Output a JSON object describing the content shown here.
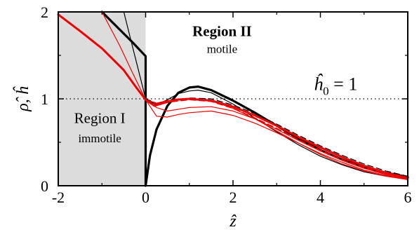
{
  "chart_data": {
    "type": "line",
    "xlabel": "ẑ",
    "ylabel": "ρ̂, ĥ",
    "xlim": [
      -2,
      6
    ],
    "ylim": [
      0,
      2
    ],
    "xticks": [
      "-2",
      "0",
      "2",
      "4",
      "6"
    ],
    "yticks": [
      "0",
      "1",
      "2"
    ],
    "grid": false,
    "regions": [
      {
        "title": "Region I",
        "subtitle": "immotile",
        "x_range": [
          -2,
          0
        ],
        "fill": "#dcdcdc"
      },
      {
        "title": "Region II",
        "subtitle": "motile",
        "x_range": [
          0,
          6
        ],
        "fill": "#ffffff"
      }
    ],
    "annotation": {
      "lhs": "ĥ",
      "subscript": "0",
      "rhs": " = 1"
    },
    "reference_line": {
      "y": 1,
      "style": "dotted"
    },
    "series": [
      {
        "color": "#000000",
        "width": 3.2,
        "dash": "",
        "x": [
          -1.0,
          -0.6,
          -0.3,
          0,
          0,
          0.1,
          0.25,
          0.5,
          0.75,
          1.0,
          1.2,
          1.5,
          2.0,
          2.5,
          3.0,
          3.5,
          4.0,
          4.5,
          5.0,
          5.5,
          6.0
        ],
        "y": [
          2.0,
          1.8,
          1.65,
          1.49,
          0,
          0.35,
          0.65,
          0.92,
          1.07,
          1.13,
          1.14,
          1.1,
          0.98,
          0.84,
          0.69,
          0.54,
          0.41,
          0.3,
          0.21,
          0.15,
          0.1
        ]
      },
      {
        "color": "#000000",
        "width": 1.2,
        "dash": "",
        "x": [
          -0.5,
          -0.3,
          -0.1,
          0,
          0.25,
          0.5,
          0.75,
          1.0,
          1.2,
          1.5,
          2.0,
          2.5,
          3.0,
          3.5,
          4.0,
          4.5,
          5.0,
          5.5,
          6.0
        ],
        "y": [
          2.0,
          1.6,
          1.2,
          1.0,
          0.93,
          0.99,
          1.06,
          1.09,
          1.1,
          1.07,
          0.94,
          0.78,
          0.62,
          0.47,
          0.34,
          0.24,
          0.16,
          0.11,
          0.08
        ]
      },
      {
        "color": "#000000",
        "width": 1.2,
        "dash": "8,5",
        "x": [
          0,
          0.25,
          0.5,
          1.0,
          1.5,
          2.0,
          2.5,
          3.0,
          3.5,
          4.0,
          4.5,
          5.0,
          5.5,
          6.0
        ],
        "y": [
          1.0,
          0.95,
          0.97,
          1.01,
          1.0,
          0.93,
          0.83,
          0.71,
          0.58,
          0.46,
          0.35,
          0.25,
          0.17,
          0.11
        ]
      },
      {
        "color": "#ee0000",
        "width": 3.0,
        "dash": "",
        "x": [
          -2,
          -1.5,
          -1.0,
          -0.5,
          -0.2,
          0,
          0.2,
          0.4,
          0.7,
          1.0,
          1.5,
          2.0,
          2.5,
          3.0,
          3.5,
          4.0,
          4.5,
          5.0,
          5.5,
          6.0
        ],
        "y": [
          1.97,
          1.78,
          1.58,
          1.33,
          1.12,
          0.99,
          0.92,
          0.95,
          0.99,
          1.0,
          0.98,
          0.91,
          0.81,
          0.69,
          0.56,
          0.44,
          0.33,
          0.23,
          0.15,
          0.09
        ]
      },
      {
        "color": "#ee0000",
        "width": 1.2,
        "dash": "",
        "x": [
          -1.0,
          -0.6,
          -0.3,
          0,
          0.25,
          0.5,
          1.0,
          1.5,
          2.0,
          2.5,
          3.0,
          3.5,
          4.0,
          4.5,
          5.0,
          5.5,
          6.0
        ],
        "y": [
          2.0,
          1.62,
          1.3,
          0.99,
          0.95,
          0.98,
          1.0,
          0.98,
          0.89,
          0.77,
          0.63,
          0.49,
          0.36,
          0.25,
          0.17,
          0.11,
          0.07
        ]
      },
      {
        "color": "#ee0000",
        "width": 1.2,
        "dash": "",
        "x": [
          0,
          0.25,
          0.5,
          1.0,
          1.5,
          2.0,
          2.5,
          3.0,
          3.5,
          4.0,
          4.5,
          5.0,
          5.5,
          6.0
        ],
        "y": [
          0.98,
          0.9,
          0.86,
          0.9,
          0.91,
          0.86,
          0.77,
          0.65,
          0.52,
          0.4,
          0.29,
          0.2,
          0.13,
          0.08
        ]
      },
      {
        "color": "#ee0000",
        "width": 1.2,
        "dash": "",
        "x": [
          0,
          0.25,
          0.5,
          0.75,
          1.0,
          1.5,
          2.0,
          2.5,
          3.0,
          3.5,
          4.0,
          4.5,
          5.0,
          5.5,
          6.0
        ],
        "y": [
          0.99,
          0.8,
          0.79,
          0.82,
          0.84,
          0.86,
          0.81,
          0.72,
          0.61,
          0.49,
          0.37,
          0.27,
          0.18,
          0.12,
          0.07
        ]
      },
      {
        "color": "#ee0000",
        "width": 1.6,
        "dash": "8,5",
        "x": [
          0,
          0.25,
          0.5,
          1.0,
          1.5,
          2.0,
          2.5,
          3.0,
          3.5,
          4.0,
          4.5,
          5.0,
          5.5,
          6.0
        ],
        "y": [
          0.99,
          0.94,
          0.96,
          0.99,
          0.97,
          0.89,
          0.78,
          0.66,
          0.53,
          0.41,
          0.3,
          0.21,
          0.14,
          0.09
        ]
      }
    ]
  }
}
